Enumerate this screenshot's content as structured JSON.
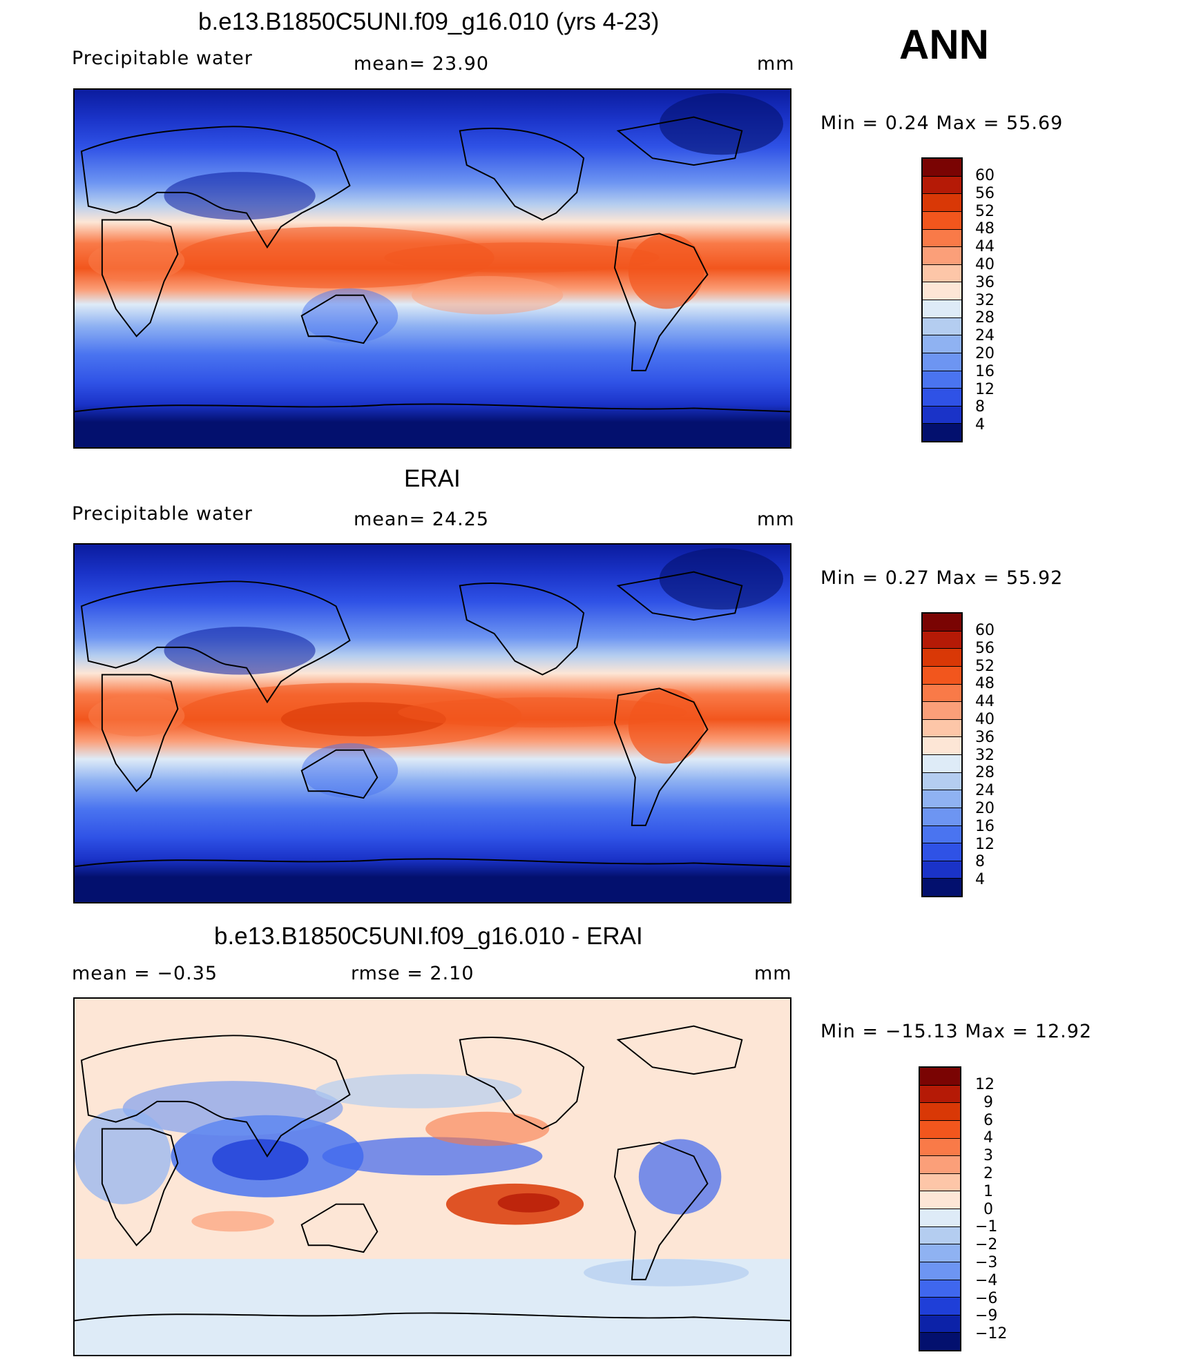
{
  "season": "ANN",
  "panels": [
    {
      "title": "b.e13.B1850C5UNI.f09_g16.010 (yrs 4-23)",
      "left_label": "Precipitable  water",
      "mid_label": "mean=   23.90",
      "units": "mm",
      "minmax": "Min  =     0.24  Max  =    55.69",
      "levels": [
        "60",
        "56",
        "52",
        "48",
        "44",
        "40",
        "36",
        "32",
        "28",
        "24",
        "20",
        "16",
        "12",
        "8",
        "4"
      ]
    },
    {
      "title": "ERAI",
      "left_label": "Precipitable  water",
      "mid_label": "mean=   24.25",
      "units": "mm",
      "minmax": "Min  =     0.27  Max  =    55.92",
      "levels": [
        "60",
        "56",
        "52",
        "48",
        "44",
        "40",
        "36",
        "32",
        "28",
        "24",
        "20",
        "16",
        "12",
        "8",
        "4"
      ]
    },
    {
      "title": "b.e13.B1850C5UNI.f09_g16.010 - ERAI",
      "left_label": "mean  =    −0.35",
      "mid_label": "rmse  =     2.10",
      "units": "mm",
      "minmax": "Min  = −15.13  Max  =    12.92",
      "levels": [
        "12",
        "9",
        "6",
        "4",
        "3",
        "2",
        "1",
        "0",
        "−1",
        "−2",
        "−3",
        "−4",
        "−6",
        "−9",
        "−12"
      ]
    }
  ],
  "colors": {
    "field": [
      "#7a0403",
      "#b51a06",
      "#d93806",
      "#f2561d",
      "#f97a48",
      "#fb9f79",
      "#fdc6a8",
      "#fde6d6",
      "#deebf7",
      "#b4cdf0",
      "#8fb2f2",
      "#6d95f2",
      "#4a74f0",
      "#2f52e6",
      "#1a33c8",
      "#0b1c9e",
      "#03106e"
    ],
    "diff": [
      "#7a0403",
      "#b51a06",
      "#d93806",
      "#f2561d",
      "#f97a48",
      "#fb9f79",
      "#fdc6a8",
      "#fde6d6",
      "#deebf7",
      "#b4cdf0",
      "#8fb2f2",
      "#6d95f2",
      "#3f67ee",
      "#1f3fd8",
      "#0c22a8",
      "#03106e"
    ]
  }
}
